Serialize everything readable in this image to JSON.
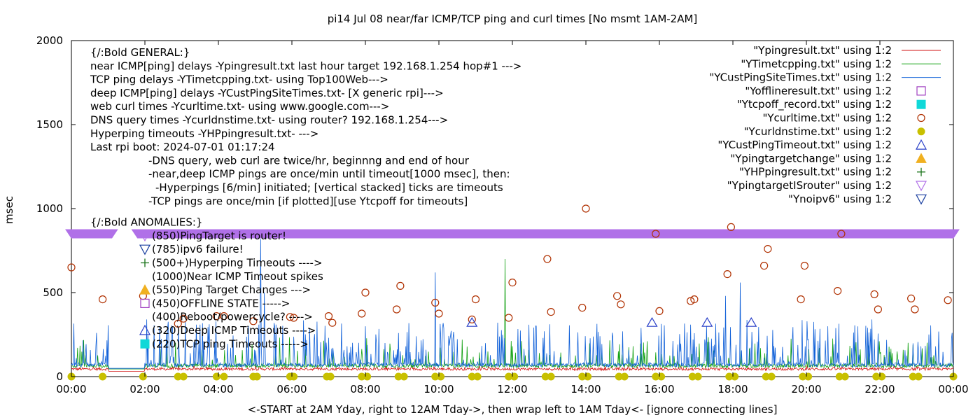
{
  "chart_data": {
    "type": "line",
    "title": "pi14 Jul 08  near/far ICMP/TCP ping and curl times [No msmt 1AM-2AM]",
    "xlabel": "<-START at 2AM Yday, right to 12AM Tday->, then wrap left to 1AM Tday<- [ignore connecting lines]",
    "ylabel": "msec",
    "xlim": [
      0,
      24
    ],
    "ylim": [
      0,
      2000
    ],
    "y_ticks": [
      0,
      500,
      1000,
      1500,
      2000
    ],
    "x_tick_labels": [
      "00:00",
      "02:00",
      "04:00",
      "06:00",
      "08:00",
      "10:00",
      "12:00",
      "14:00",
      "16:00",
      "18:00",
      "20:00",
      "22:00",
      "00:00"
    ],
    "legend_position": "top-right",
    "info_lines": [
      "{/:Bold GENERAL:}",
      "near ICMP[ping] delays -Ypingresult.txt last hour target 192.168.1.254 hop#1 --->",
      "TCP ping delays -YTimetcpping.txt- using Top100Web--->",
      "deep ICMP[ping] delays -YCustPingSiteTimes.txt- [X generic rpi]--->",
      "web curl times -Ycurltime.txt- using www.google.com--->",
      "DNS query times -Ycurldnstime.txt- using router? 192.168.1.254--->",
      "Hyperping timeouts -YHPpingresult.txt- --->",
      "Last rpi boot: 2024-07-01 01:17:24",
      "-DNS query, web curl are twice/hr, beginnng and end of hour",
      "-near,deep ICMP pings are once/min until timeout[1000 msec], then:",
      "-Hyperpings [6/min] initiated; [vertical stacked] ticks are timeouts",
      "-TCP pings are once/min [if plotted][use Ytcpoff for timeouts]"
    ],
    "anomalies_heading": "{/:Bold ANOMALIES:}",
    "anomaly_keys": [
      {
        "text": "(850)PingTarget is router!",
        "marker": "triangle-down",
        "color": "#b070e8"
      },
      {
        "text": "(785)ipv6 failure!",
        "marker": "triangle-down",
        "color": "#1a3fa0"
      },
      {
        "text": "(500+)Hyperping Timeouts ---->",
        "marker": "plus",
        "color": "#157015"
      },
      {
        "text": "(1000)Near ICMP Timeout spikes",
        "marker": "none",
        "color": "#000000"
      },
      {
        "text": "(550)Ping Target Changes --->",
        "marker": "triangle-up-filled",
        "color": "#f0b020"
      },
      {
        "text": "(450)OFFLINE STATE ----->",
        "marker": "square",
        "color": "#a040c0"
      },
      {
        "text": "(400)Reboot/powercycle? ---->",
        "marker": "none",
        "color": "#000000"
      },
      {
        "text": "(320)Deep ICMP Timeouts ---->",
        "marker": "triangle-up",
        "color": "#2a40c8"
      },
      {
        "text": "(220)TCP ping Timeouts ----->",
        "marker": "square-filled",
        "color": "#10d8d8"
      }
    ],
    "series": [
      {
        "name": "\"Ypingresult.txt\" using 1:2",
        "style": "line",
        "color": "#d01010",
        "baseline": 45
      },
      {
        "name": "\"YTimetcpping.txt\" using 1:2",
        "style": "line",
        "color": "#10a010",
        "baseline": 65
      },
      {
        "name": "\"YCustPingSiteTimes.txt\" using 1:2",
        "style": "line",
        "color": "#1060d8",
        "baseline": 70
      },
      {
        "name": "\"Yofflineresult.txt\" using 1:2",
        "style": "square",
        "color": "#a040c0"
      },
      {
        "name": "\"Ytcpoff_record.txt\" using 1:2",
        "style": "square-filled",
        "color": "#10d8d8"
      },
      {
        "name": "\"Ycurltime.txt\" using 1:2",
        "style": "circle",
        "color": "#b03000"
      },
      {
        "name": "\"Ycurldnstime.txt\" using 1:2",
        "style": "circle-filled",
        "color": "#c8c000"
      },
      {
        "name": "\"YCustPingTimeout.txt\" using 1:2",
        "style": "triangle-up",
        "color": "#2a40c8"
      },
      {
        "name": "\"Ypingtargetchange\" using 1:2",
        "style": "triangle-up-filled",
        "color": "#f0b020"
      },
      {
        "name": "\"YHPpingresult.txt\" using 1:2",
        "style": "plus",
        "color": "#157015"
      },
      {
        "name": "\"YpingtargetISrouter\" using 1:2",
        "style": "triangle-down",
        "color": "#b070e8"
      },
      {
        "name": "\"Ynoipv6\" using 1:2",
        "style": "triangle-down",
        "color": "#1a3fa0"
      }
    ],
    "curl_points": [
      [
        0.0,
        650
      ],
      [
        0.85,
        460
      ],
      [
        1.95,
        480
      ],
      [
        2.9,
        315
      ],
      [
        3.05,
        345
      ],
      [
        3.95,
        360
      ],
      [
        4.15,
        360
      ],
      [
        4.95,
        330
      ],
      [
        5.95,
        355
      ],
      [
        6.05,
        350
      ],
      [
        7.0,
        360
      ],
      [
        7.1,
        320
      ],
      [
        7.9,
        375
      ],
      [
        8.0,
        500
      ],
      [
        8.85,
        400
      ],
      [
        8.95,
        540
      ],
      [
        9.9,
        440
      ],
      [
        10.0,
        375
      ],
      [
        10.9,
        340
      ],
      [
        11.0,
        460
      ],
      [
        11.9,
        350
      ],
      [
        12.0,
        560
      ],
      [
        12.95,
        700
      ],
      [
        13.05,
        385
      ],
      [
        13.9,
        410
      ],
      [
        14.0,
        1000
      ],
      [
        14.85,
        480
      ],
      [
        14.95,
        430
      ],
      [
        15.9,
        850
      ],
      [
        16.0,
        390
      ],
      [
        16.85,
        450
      ],
      [
        16.95,
        460
      ],
      [
        17.85,
        610
      ],
      [
        17.95,
        890
      ],
      [
        18.85,
        660
      ],
      [
        18.95,
        760
      ],
      [
        19.85,
        460
      ],
      [
        19.95,
        660
      ],
      [
        20.85,
        510
      ],
      [
        20.95,
        850
      ],
      [
        21.85,
        490
      ],
      [
        21.95,
        400
      ],
      [
        22.85,
        465
      ],
      [
        22.95,
        400
      ],
      [
        23.85,
        455
      ]
    ],
    "dns_points": [
      [
        0.0,
        0
      ],
      [
        0.85,
        0
      ],
      [
        1.95,
        0
      ],
      [
        2.9,
        0
      ],
      [
        3.05,
        0
      ],
      [
        3.95,
        0
      ],
      [
        4.15,
        0
      ],
      [
        4.95,
        0
      ],
      [
        5.05,
        0
      ],
      [
        5.95,
        0
      ],
      [
        6.05,
        0
      ],
      [
        6.95,
        0
      ],
      [
        7.05,
        0
      ],
      [
        7.9,
        0
      ],
      [
        8.05,
        0
      ],
      [
        8.9,
        0
      ],
      [
        9.05,
        0
      ],
      [
        9.9,
        0
      ],
      [
        10.05,
        0
      ],
      [
        10.9,
        0
      ],
      [
        11.05,
        0
      ],
      [
        11.9,
        0
      ],
      [
        12.05,
        0
      ],
      [
        12.9,
        0
      ],
      [
        13.05,
        0
      ],
      [
        13.9,
        0
      ],
      [
        14.05,
        0
      ],
      [
        14.9,
        0
      ],
      [
        15.05,
        0
      ],
      [
        15.9,
        0
      ],
      [
        16.05,
        0
      ],
      [
        16.9,
        0
      ],
      [
        17.05,
        0
      ],
      [
        17.9,
        0
      ],
      [
        18.05,
        0
      ],
      [
        18.9,
        0
      ],
      [
        19.05,
        0
      ],
      [
        19.9,
        0
      ],
      [
        20.05,
        0
      ],
      [
        20.9,
        0
      ],
      [
        21.05,
        0
      ],
      [
        21.9,
        0
      ],
      [
        22.05,
        0
      ],
      [
        22.9,
        0
      ],
      [
        23.05,
        0
      ],
      [
        24.0,
        0
      ]
    ],
    "deep_timeout_points": [
      [
        10.9,
        320
      ],
      [
        15.8,
        320
      ],
      [
        17.3,
        320
      ],
      [
        18.5,
        320
      ]
    ],
    "router_target_band": {
      "value": 850,
      "x_ranges": [
        [
          0.0,
          1.1
        ],
        [
          1.8,
          24.0
        ]
      ]
    },
    "gap_hours": [
      1.0,
      2.0
    ],
    "notable_spikes": [
      {
        "x": 2.05,
        "y": 340,
        "series": "YCustPingSiteTimes.txt"
      },
      {
        "x": 5.15,
        "y": 820,
        "series": "YCustPingSiteTimes.txt"
      },
      {
        "x": 5.25,
        "y": 500,
        "series": "YCustPingSiteTimes.txt"
      },
      {
        "x": 9.9,
        "y": 620,
        "series": "YCustPingSiteTimes.txt"
      },
      {
        "x": 11.8,
        "y": 700,
        "series": "YTimetcpping.txt"
      },
      {
        "x": 18.2,
        "y": 560,
        "series": "YCustPingSiteTimes.txt"
      },
      {
        "x": 17.8,
        "y": 480,
        "series": "YCustPingSiteTimes.txt"
      }
    ]
  }
}
